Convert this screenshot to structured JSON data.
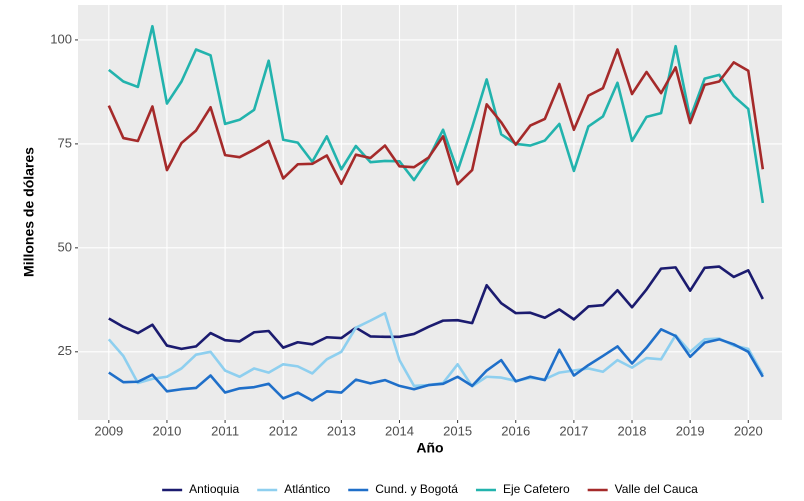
{
  "chart_data": {
    "type": "line",
    "x_label": "Año",
    "y_label": "Millones de dólares",
    "x": [
      2009,
      2009.25,
      2009.5,
      2009.75,
      2010,
      2010.25,
      2010.5,
      2010.75,
      2011,
      2011.25,
      2011.5,
      2011.75,
      2012,
      2012.25,
      2012.5,
      2012.75,
      2013,
      2013.25,
      2013.5,
      2013.75,
      2014,
      2014.25,
      2014.5,
      2014.75,
      2015,
      2015.25,
      2015.5,
      2015.75,
      2016,
      2016.25,
      2016.5,
      2016.75,
      2017,
      2017.25,
      2017.5,
      2017.75,
      2018,
      2018.25,
      2018.5,
      2018.75,
      2019,
      2019.25,
      2019.5,
      2019.75,
      2020,
      2020.25
    ],
    "xlim": [
      2008.47,
      2020.58
    ],
    "xticks": [
      2009,
      2010,
      2011,
      2012,
      2013,
      2014,
      2015,
      2016,
      2017,
      2018,
      2019,
      2020
    ],
    "ylim": [
      8.6,
      108.4
    ],
    "yticks": [
      25,
      50,
      75,
      100
    ],
    "grid": true,
    "legend": "bottom",
    "series": [
      {
        "name": "Antioquia",
        "color": "#1b1b6f",
        "values": [
          33.0,
          31.0,
          29.5,
          31.5,
          26.5,
          25.7,
          26.3,
          29.5,
          27.8,
          27.5,
          29.7,
          30.0,
          26.0,
          27.3,
          26.8,
          28.5,
          28.3,
          30.8,
          28.7,
          28.6,
          28.6,
          29.3,
          31.0,
          32.5,
          32.6,
          31.9,
          41.0,
          36.7,
          34.3,
          34.4,
          33.2,
          35.2,
          32.8,
          35.9,
          36.2,
          39.8,
          35.7,
          40.0,
          45.0,
          45.3,
          39.7,
          45.2,
          45.5,
          43.0,
          44.6,
          37.7
        ]
      },
      {
        "name": "Atlántico",
        "color": "#8ecfef",
        "values": [
          28.0,
          24.0,
          17.5,
          18.5,
          19.0,
          21.0,
          24.3,
          25.0,
          20.5,
          19.0,
          21.0,
          20.0,
          22.0,
          21.5,
          19.8,
          23.2,
          25.0,
          30.8,
          32.5,
          34.3,
          23.0,
          16.8,
          17.0,
          17.5,
          22.0,
          16.7,
          19.0,
          18.8,
          18.0,
          18.7,
          18.4,
          20.0,
          20.5,
          21.0,
          20.2,
          23.0,
          21.2,
          23.5,
          23.2,
          29.0,
          25.0,
          28.0,
          28.2,
          26.5,
          25.7,
          19.5
        ]
      },
      {
        "name": "Cund. y Bogotá",
        "color": "#1f6fc9",
        "values": [
          20.0,
          17.7,
          17.8,
          19.5,
          15.5,
          16.0,
          16.3,
          19.3,
          15.2,
          16.2,
          16.5,
          17.3,
          13.8,
          15.2,
          13.3,
          15.5,
          15.2,
          18.3,
          17.4,
          18.2,
          16.8,
          16.0,
          17.0,
          17.3,
          19.0,
          16.8,
          20.5,
          23.0,
          17.9,
          19.0,
          18.2,
          25.5,
          19.3,
          21.8,
          24.0,
          26.3,
          22.2,
          26.0,
          30.4,
          28.8,
          23.8,
          27.2,
          28.0,
          26.8,
          25.0,
          19.0
        ]
      },
      {
        "name": "Eje Cafetero",
        "color": "#22b3ad",
        "values": [
          92.8,
          90.0,
          88.7,
          103.3,
          84.7,
          90.0,
          97.7,
          96.3,
          79.8,
          80.8,
          83.2,
          95.0,
          76.0,
          75.3,
          70.7,
          76.8,
          68.9,
          74.5,
          70.6,
          70.9,
          70.8,
          66.3,
          71.5,
          78.4,
          68.5,
          79.0,
          90.5,
          77.3,
          75.0,
          74.6,
          75.8,
          79.8,
          68.5,
          79.2,
          81.6,
          89.7,
          75.7,
          81.5,
          82.4,
          98.5,
          81.2,
          90.7,
          91.6,
          86.5,
          83.4,
          60.8
        ]
      },
      {
        "name": "Valle del Cauca",
        "color": "#a52a2a",
        "values": [
          84.2,
          76.4,
          75.7,
          84.0,
          68.7,
          75.2,
          78.2,
          83.8,
          72.3,
          71.8,
          73.6,
          75.7,
          66.7,
          70.1,
          70.2,
          72.2,
          65.4,
          72.4,
          71.6,
          74.6,
          69.6,
          69.4,
          71.7,
          76.8,
          65.3,
          68.7,
          84.5,
          80.2,
          74.8,
          79.4,
          81.0,
          89.4,
          78.4,
          86.6,
          88.4,
          97.7,
          87.0,
          92.3,
          87.2,
          93.4,
          80.0,
          89.2,
          90.0,
          94.6,
          92.6,
          68.9
        ]
      }
    ]
  }
}
